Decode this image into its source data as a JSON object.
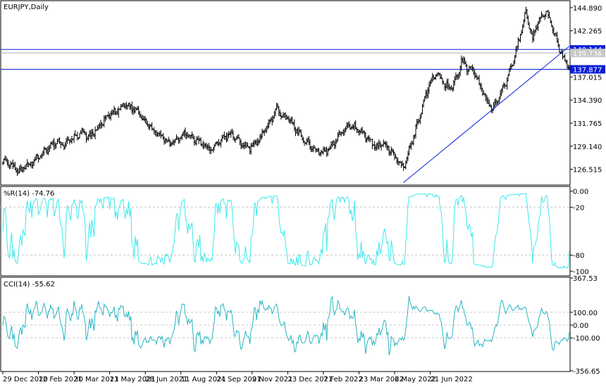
{
  "chart_data": [
    {
      "type": "candlestick",
      "title": "EURJPY,Daily",
      "yticks": [
        144.89,
        142.265,
        139.735,
        137.015,
        134.39,
        131.765,
        129.14,
        126.515
      ],
      "ytick_labels": [
        "144.890",
        "142.265",
        "139.735",
        "137.015",
        "134.390",
        "131.765",
        "129.140",
        "126.515"
      ],
      "ylim": [
        124.8,
        145.6
      ],
      "price_levels": [
        {
          "value": 140.144,
          "label": "140.144",
          "badge": "#0a1fd6"
        },
        {
          "value": 139.736,
          "label": "139.736",
          "badge": "#c8c8c8"
        },
        {
          "value": 137.877,
          "label": "137.877",
          "badge": "#0a1fd6"
        }
      ],
      "path": [
        [
          0,
          127.4
        ],
        [
          8,
          126.9
        ],
        [
          14,
          126.1
        ],
        [
          22,
          127.0
        ],
        [
          32,
          127.9
        ],
        [
          40,
          128.8
        ],
        [
          48,
          129.6
        ],
        [
          56,
          129.3
        ],
        [
          62,
          130.0
        ],
        [
          70,
          130.6
        ],
        [
          78,
          130.2
        ],
        [
          84,
          131.0
        ],
        [
          90,
          131.9
        ],
        [
          96,
          132.7
        ],
        [
          104,
          133.2
        ],
        [
          110,
          133.9
        ],
        [
          116,
          133.5
        ],
        [
          122,
          133.1
        ],
        [
          126,
          132.3
        ],
        [
          132,
          131.4
        ],
        [
          138,
          130.6
        ],
        [
          144,
          130.1
        ],
        [
          150,
          129.5
        ],
        [
          156,
          129.9
        ],
        [
          162,
          130.6
        ],
        [
          168,
          130.3
        ],
        [
          174,
          129.8
        ],
        [
          180,
          129.3
        ],
        [
          186,
          128.7
        ],
        [
          192,
          129.4
        ],
        [
          198,
          130.1
        ],
        [
          204,
          130.5
        ],
        [
          210,
          130.0
        ],
        [
          216,
          129.3
        ],
        [
          222,
          129.0
        ],
        [
          228,
          129.5
        ],
        [
          234,
          130.6
        ],
        [
          240,
          131.9
        ],
        [
          246,
          133.3
        ],
        [
          252,
          132.8
        ],
        [
          258,
          132.0
        ],
        [
          264,
          131.0
        ],
        [
          270,
          130.0
        ],
        [
          276,
          129.2
        ],
        [
          282,
          128.6
        ],
        [
          288,
          128.4
        ],
        [
          294,
          129.0
        ],
        [
          300,
          130.0
        ],
        [
          306,
          130.9
        ],
        [
          312,
          131.5
        ],
        [
          318,
          131.2
        ],
        [
          324,
          130.6
        ],
        [
          330,
          129.7
        ],
        [
          336,
          129.1
        ],
        [
          342,
          129.4
        ],
        [
          348,
          128.7
        ],
        [
          354,
          127.5
        ],
        [
          360,
          126.7
        ],
        [
          366,
          129.0
        ],
        [
          372,
          131.5
        ],
        [
          378,
          134.0
        ],
        [
          384,
          136.5
        ],
        [
          390,
          137.5
        ],
        [
          396,
          136.3
        ],
        [
          402,
          135.8
        ],
        [
          408,
          136.9
        ],
        [
          412,
          138.9
        ],
        [
          416,
          138.2
        ],
        [
          422,
          137.7
        ],
        [
          428,
          136.2
        ],
        [
          434,
          134.6
        ],
        [
          440,
          133.2
        ],
        [
          446,
          134.8
        ],
        [
          452,
          136.4
        ],
        [
          458,
          138.6
        ],
        [
          464,
          141.3
        ],
        [
          470,
          144.4
        ],
        [
          476,
          141.3
        ],
        [
          482,
          143.6
        ],
        [
          488,
          144.5
        ],
        [
          494,
          142.4
        ],
        [
          500,
          140.2
        ],
        [
          506,
          138.6
        ],
        [
          510,
          137.9
        ]
      ],
      "trendline": {
        "from": [
          360,
          125.0
        ],
        "to": [
          509,
          140.5
        ]
      }
    },
    {
      "type": "line",
      "title": "%R(14) -74.76",
      "series_name": "%R(14)",
      "last_value": -74.76,
      "color": "#3ce8ec",
      "yticks": [
        0.0,
        -20,
        -80,
        -100
      ],
      "ytick_labels": [
        "0.00",
        "-20",
        "-80",
        "-100"
      ],
      "ylim": [
        -105,
        5
      ],
      "levels": [
        -20,
        -80
      ]
    },
    {
      "type": "line",
      "title": "CCI(14) -55.62",
      "series_name": "CCI(14)",
      "last_value": -55.62,
      "color": "#27b7c2",
      "yticks": [
        367.53,
        100.0,
        0.0,
        -100.0,
        -356.65
      ],
      "ytick_labels": [
        "367.53",
        "100.00",
        "0.00",
        "-100.00",
        "-356.65"
      ],
      "ylim": [
        -356.65,
        367.53
      ],
      "levels": [
        100,
        0,
        -100
      ]
    }
  ],
  "x_axis": {
    "labels": [
      "29 Dec 2020",
      "12 Feb 2021",
      "30 Mar 2021",
      "13 May 2021",
      "28 Jun 2021",
      "11 Aug 2021",
      "24 Sep 2021",
      "9 Nov 2021",
      "23 Dec 2021",
      "7 Feb 2022",
      "23 Mar 2022",
      "6 May 2022",
      "21 Jun 2022"
    ],
    "label_bars": [
      0,
      32,
      64,
      96,
      128,
      160,
      192,
      224,
      256,
      288,
      320,
      352,
      384
    ]
  },
  "colors": {
    "candles": "#000000",
    "levels": "#0a1fd6",
    "frame": "#000000",
    "grid": "#c8c8c8"
  }
}
